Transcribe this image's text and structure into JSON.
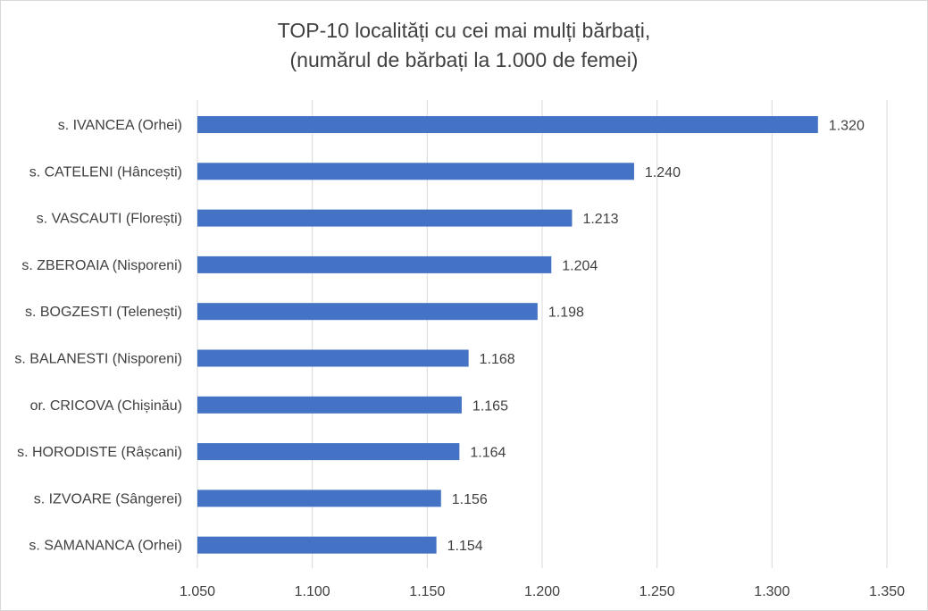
{
  "chart_data": {
    "type": "bar",
    "orientation": "horizontal",
    "title_lines": [
      "TOP-10 localități cu cei mai mulți bărbați,",
      "(numărul de bărbați la 1.000 de femei)"
    ],
    "categories": [
      "s. IVANCEA (Orhei)",
      "s. CATELENI (Hâncești)",
      "s. VASCAUTI (Florești)",
      "s. ZBEROAIA (Nisporeni)",
      "s. BOGZESTI (Telenești)",
      "s. BALANESTI (Nisporeni)",
      "or. CRICOVA (Chișinău)",
      "s. HORODISTE (Râșcani)",
      "s. IZVOARE (Sângerei)",
      "s. SAMANANCA (Orhei)"
    ],
    "values": [
      1.32,
      1.24,
      1.213,
      1.204,
      1.198,
      1.168,
      1.165,
      1.164,
      1.156,
      1.154
    ],
    "data_labels": [
      "1.320",
      "1.240",
      "1.213",
      "1.204",
      "1.198",
      "1.168",
      "1.165",
      "1.164",
      "1.156",
      "1.154"
    ],
    "xlim": [
      1.05,
      1.35
    ],
    "x_ticks": [
      1.05,
      1.1,
      1.15,
      1.2,
      1.25,
      1.3,
      1.35
    ],
    "x_tick_labels": [
      "1.050",
      "1.100",
      "1.150",
      "1.200",
      "1.250",
      "1.300",
      "1.350"
    ],
    "grid": "vertical",
    "legend": "none",
    "bar_color": "#4472c4",
    "grid_color": "#d9d9d9",
    "text_color": "#404040"
  }
}
